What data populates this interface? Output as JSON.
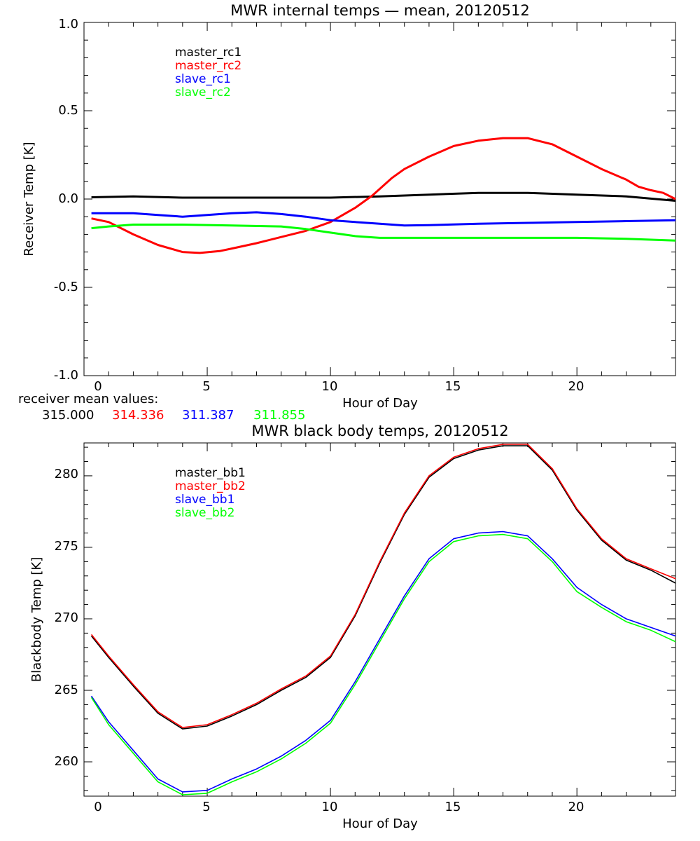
{
  "charts": [
    {
      "title": "MWR internal temps — mean, 20120512",
      "xlabel": "Hour of Day",
      "ylabel": "Receiver Temp [K]",
      "legend": [
        {
          "label": "master_rc1",
          "color": "#000000"
        },
        {
          "label": "master_rc2",
          "color": "#ff0000"
        },
        {
          "label": "slave_rc1",
          "color": "#0000ff"
        },
        {
          "label": "slave_rc2",
          "color": "#00ff00"
        }
      ],
      "x_ticks": [
        "0",
        "5",
        "10",
        "15",
        "20"
      ],
      "y_ticks": [
        "-1.0",
        "-0.5",
        "0.0",
        "0.5",
        "1.0"
      ]
    },
    {
      "title": "MWR black body temps, 20120512",
      "xlabel": "Hour of Day",
      "ylabel": "Blackbody Temp [K]",
      "legend": [
        {
          "label": "master_bb1",
          "color": "#000000"
        },
        {
          "label": "master_bb2",
          "color": "#ff0000"
        },
        {
          "label": "slave_bb1",
          "color": "#0000ff"
        },
        {
          "label": "slave_bb2",
          "color": "#00ff00"
        }
      ],
      "x_ticks": [
        "0",
        "5",
        "10",
        "15",
        "20"
      ],
      "y_ticks": [
        "260",
        "265",
        "270",
        "275",
        "280"
      ]
    }
  ],
  "receiver_means": {
    "label": "receiver mean values:",
    "values": [
      {
        "text": "315.000",
        "color": "#000000"
      },
      {
        "text": "314.336",
        "color": "#ff0000"
      },
      {
        "text": "311.387",
        "color": "#0000ff"
      },
      {
        "text": "311.855",
        "color": "#00ff00"
      }
    ]
  },
  "chart_data": [
    {
      "type": "line",
      "title": "MWR internal temps — mean, 20120512",
      "xlabel": "Hour of Day",
      "ylabel": "Receiver Temp [K]",
      "xlim": [
        0,
        24
      ],
      "ylim": [
        -1.0,
        1.0
      ],
      "legend_position": "top-left",
      "series": [
        {
          "name": "master_rc1",
          "color": "#000000",
          "x": [
            0.3,
            2,
            4,
            6,
            8,
            10,
            12,
            14,
            16,
            18,
            20,
            22,
            24
          ],
          "y": [
            0.01,
            0.015,
            0.008,
            0.008,
            0.008,
            0.008,
            0.015,
            0.025,
            0.035,
            0.035,
            0.025,
            0.015,
            -0.01
          ]
        },
        {
          "name": "master_rc2",
          "color": "#ff0000",
          "x": [
            0.3,
            1,
            2,
            3,
            4,
            4.7,
            5.5,
            6,
            7,
            8,
            9,
            10,
            11,
            11.7,
            12.5,
            13,
            14,
            15,
            16,
            17,
            18,
            19,
            20,
            21,
            22,
            22.5,
            23,
            23.5,
            24
          ],
          "y": [
            -0.11,
            -0.13,
            -0.2,
            -0.26,
            -0.3,
            -0.305,
            -0.295,
            -0.28,
            -0.25,
            -0.215,
            -0.18,
            -0.13,
            -0.05,
            0.02,
            0.12,
            0.17,
            0.24,
            0.3,
            0.33,
            0.345,
            0.345,
            0.31,
            0.24,
            0.17,
            0.11,
            0.07,
            0.05,
            0.035,
            0.0
          ]
        },
        {
          "name": "slave_rc1",
          "color": "#0000ff",
          "x": [
            0.3,
            2,
            3,
            4,
            5,
            6,
            7,
            8,
            9,
            10,
            11,
            12,
            13,
            14,
            16,
            18,
            20,
            22,
            24
          ],
          "y": [
            -0.08,
            -0.08,
            -0.09,
            -0.1,
            -0.09,
            -0.08,
            -0.075,
            -0.085,
            -0.1,
            -0.12,
            -0.13,
            -0.14,
            -0.15,
            -0.148,
            -0.14,
            -0.135,
            -0.13,
            -0.125,
            -0.12
          ]
        },
        {
          "name": "slave_rc2",
          "color": "#00ff00",
          "x": [
            0.3,
            1,
            2,
            4,
            6,
            8,
            9,
            10,
            11,
            12,
            14,
            16,
            18,
            20,
            22,
            24
          ],
          "y": [
            -0.165,
            -0.155,
            -0.145,
            -0.145,
            -0.15,
            -0.155,
            -0.17,
            -0.19,
            -0.21,
            -0.22,
            -0.22,
            -0.22,
            -0.22,
            -0.22,
            -0.225,
            -0.235
          ]
        }
      ]
    },
    {
      "type": "line",
      "title": "MWR black body temps, 20120512",
      "xlabel": "Hour of Day",
      "ylabel": "Blackbody Temp [K]",
      "xlim": [
        0,
        24
      ],
      "ylim": [
        257.6,
        282.3
      ],
      "legend_position": "top-left",
      "series": [
        {
          "name": "master_bb1",
          "color": "#000000",
          "x": [
            0.3,
            1,
            2,
            3,
            4,
            5,
            6,
            7,
            8,
            9,
            10,
            11,
            12,
            13,
            14,
            15,
            16,
            17,
            18,
            19,
            20,
            21,
            22,
            23,
            24
          ],
          "y": [
            268.8,
            267.3,
            265.3,
            263.4,
            262.3,
            262.5,
            263.2,
            264.0,
            265.0,
            265.9,
            267.3,
            270.2,
            273.9,
            277.3,
            279.9,
            281.2,
            281.8,
            282.1,
            282.1,
            280.4,
            277.6,
            275.5,
            274.1,
            273.4,
            272.5
          ]
        },
        {
          "name": "master_bb2",
          "color": "#ff0000",
          "x": [
            0.3,
            1,
            2,
            3,
            4,
            5,
            6,
            7,
            8,
            9,
            10,
            11,
            12,
            13,
            14,
            15,
            16,
            17,
            18,
            19,
            20,
            21,
            22,
            23,
            24
          ],
          "y": [
            268.9,
            267.4,
            265.4,
            263.5,
            262.4,
            262.6,
            263.3,
            264.1,
            265.1,
            266.0,
            267.4,
            270.3,
            274.0,
            277.4,
            280.0,
            281.3,
            281.9,
            282.2,
            282.2,
            280.5,
            277.7,
            275.6,
            274.2,
            273.5,
            272.8
          ]
        },
        {
          "name": "slave_bb1",
          "color": "#0000ff",
          "x": [
            0.3,
            1,
            2,
            3,
            4,
            5,
            6,
            7,
            8,
            9,
            10,
            11,
            12,
            13,
            14,
            15,
            16,
            17,
            18,
            19,
            20,
            21,
            22,
            23,
            24
          ],
          "y": [
            264.6,
            262.8,
            260.8,
            258.8,
            257.9,
            258.0,
            258.8,
            259.5,
            260.4,
            261.5,
            262.9,
            265.6,
            268.6,
            271.6,
            274.2,
            275.6,
            276.0,
            276.1,
            275.8,
            274.2,
            272.2,
            271.0,
            270.0,
            269.4,
            268.8
          ]
        },
        {
          "name": "slave_bb2",
          "color": "#00ff00",
          "x": [
            0.3,
            1,
            2,
            3,
            4,
            5,
            6,
            7,
            8,
            9,
            10,
            11,
            12,
            13,
            14,
            15,
            16,
            17,
            18,
            19,
            20,
            21,
            22,
            23,
            24
          ],
          "y": [
            264.5,
            262.6,
            260.6,
            258.6,
            257.7,
            257.8,
            258.6,
            259.3,
            260.2,
            261.3,
            262.7,
            265.4,
            268.4,
            271.4,
            274.0,
            275.4,
            275.8,
            275.9,
            275.6,
            274.0,
            271.9,
            270.8,
            269.8,
            269.2,
            268.4
          ]
        }
      ]
    }
  ]
}
